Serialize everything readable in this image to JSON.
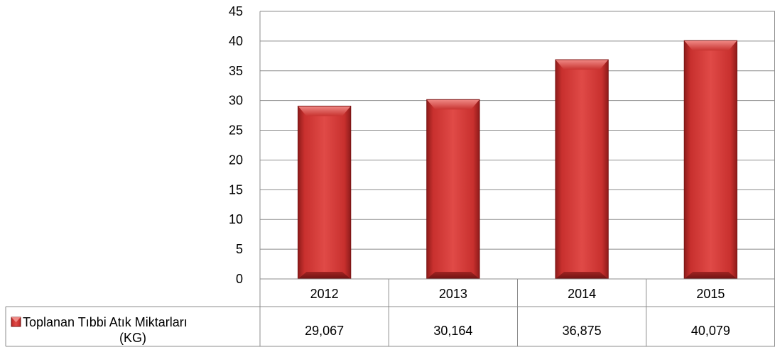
{
  "chart_data": {
    "type": "bar",
    "categories": [
      "2012",
      "2013",
      "2014",
      "2015"
    ],
    "series": [
      {
        "name": "Toplanan Tıbbi Atık Miktarları (KG)",
        "name_lines": [
          "Toplanan Tıbbi Atık Miktarları",
          "(KG)"
        ],
        "values": [
          29.067,
          30.164,
          36.875,
          40.079
        ],
        "value_labels": [
          "29,067",
          "30,164",
          "36,875",
          "40,079"
        ],
        "color": "#c0302e"
      }
    ],
    "y_ticks": [
      "0",
      "5",
      "10",
      "15",
      "20",
      "25",
      "30",
      "35",
      "40",
      "45"
    ],
    "ylim": [
      0,
      45
    ],
    "grid": true,
    "legend": "data-table",
    "data_table": true
  }
}
